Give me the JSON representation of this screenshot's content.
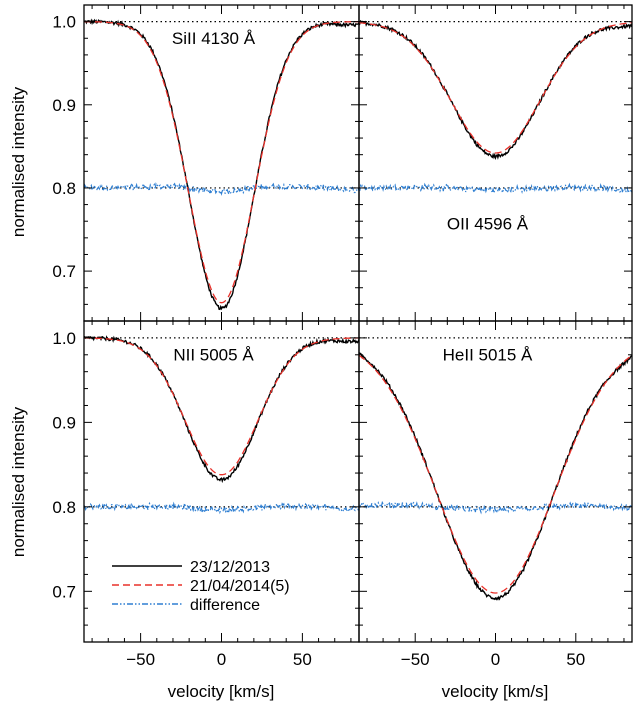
{
  "chart_data": {
    "type": "line",
    "layout": "2x2 grid of panels sharing axes",
    "xlabel": "velocity [km/s]",
    "ylabel": "normalised intensity",
    "xlim": [
      -85,
      85
    ],
    "xticks": [
      -50,
      0,
      50
    ],
    "top_row_ylim": [
      0.64,
      1.02
    ],
    "bottom_row_ylim": [
      0.64,
      1.02
    ],
    "yticks": [
      0.7,
      0.8,
      0.9,
      1.0
    ],
    "ytick_labels": [
      "0.7",
      "0.8",
      "0.9",
      "1.0"
    ],
    "xtick_labels": [
      "−50",
      "0",
      "50"
    ],
    "reference_lines": [
      1.0,
      0.8
    ],
    "legend": {
      "placement": "lower-left of bottom-left panel",
      "entries": [
        {
          "label": "23/12/2013",
          "color": "#000000",
          "style": "solid"
        },
        {
          "label": "21/04/2014(5)",
          "color": "#e8312a",
          "style": "dashed"
        },
        {
          "label": "difference",
          "color": "#2f7fd2",
          "style": "dash-dot-dot"
        }
      ]
    },
    "panels": [
      {
        "id": "siII",
        "label": "SiII 4130 Å",
        "row": 0,
        "col": 0,
        "label_pos": "top-center",
        "continuum": 1.0,
        "min_velocity": 0,
        "depth": 0.345,
        "sigma": 20,
        "model_depth": 0.338
      },
      {
        "id": "oII",
        "label": "OII 4596 Å",
        "row": 0,
        "col": 1,
        "label_pos": "lower-center",
        "continuum": 1.0,
        "min_velocity": 0,
        "depth": 0.162,
        "sigma": 27,
        "model_depth": 0.158
      },
      {
        "id": "nII",
        "label": "NII 5005 Å",
        "row": 1,
        "col": 0,
        "label_pos": "top-center",
        "continuum": 1.0,
        "min_velocity": 0,
        "depth": 0.168,
        "sigma": 22,
        "model_depth": 0.162
      },
      {
        "id": "heII",
        "label": "HeII 5015 Å",
        "row": 1,
        "col": 1,
        "label_pos": "top-center",
        "continuum": 1.0,
        "min_velocity": 0,
        "depth": 0.308,
        "sigma": 36,
        "model_depth": 0.302
      }
    ],
    "series_colors": {
      "obs": "#000000",
      "model": "#e8312a",
      "diff": "#2f7fd2"
    }
  }
}
